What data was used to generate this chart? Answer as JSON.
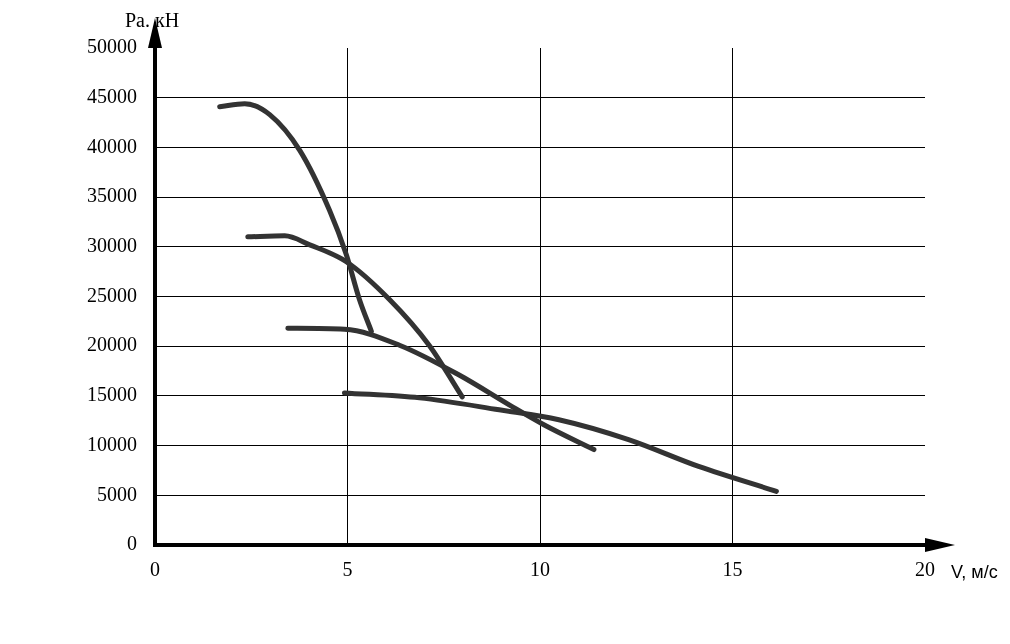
{
  "chart_data": {
    "type": "line",
    "xlabel": "V, м/с",
    "ylabel": "Ра. кН",
    "xlim": [
      0,
      20
    ],
    "xticks": [
      0,
      5,
      10,
      15,
      20
    ],
    "ylim": [
      0,
      50000
    ],
    "yticks": [
      0,
      5000,
      10000,
      15000,
      20000,
      25000,
      30000,
      35000,
      40000,
      45000,
      50000
    ],
    "grid": true,
    "legend": false,
    "marker": "none",
    "line_style": "solid",
    "series": [
      {
        "color": "#333333",
        "x": [
          1.68,
          2.33,
          2.98,
          3.76,
          4.53,
          4.97,
          5.31,
          5.62
        ],
        "values": [
          44100,
          44400,
          43300,
          39700,
          33700,
          29200,
          24700,
          21500
        ]
      },
      {
        "color": "#333333",
        "x": [
          2.41,
          3.37,
          4.02,
          4.97,
          6.09,
          7.12,
          7.98
        ],
        "values": [
          31000,
          31100,
          30200,
          28500,
          24700,
          20100,
          14900
        ]
      },
      {
        "color": "#333333",
        "x": [
          3.45,
          4.92,
          6.35,
          7.9,
          9.2,
          10.1,
          11.4
        ],
        "values": [
          21800,
          21700,
          20100,
          17100,
          14100,
          12100,
          9600
        ]
      },
      {
        "color": "#333333",
        "x": [
          4.92,
          6.87,
          8.94,
          10.49,
          12.3,
          14.12,
          16.14
        ],
        "values": [
          15300,
          14800,
          13600,
          12600,
          10600,
          7900,
          5400
        ]
      }
    ]
  }
}
